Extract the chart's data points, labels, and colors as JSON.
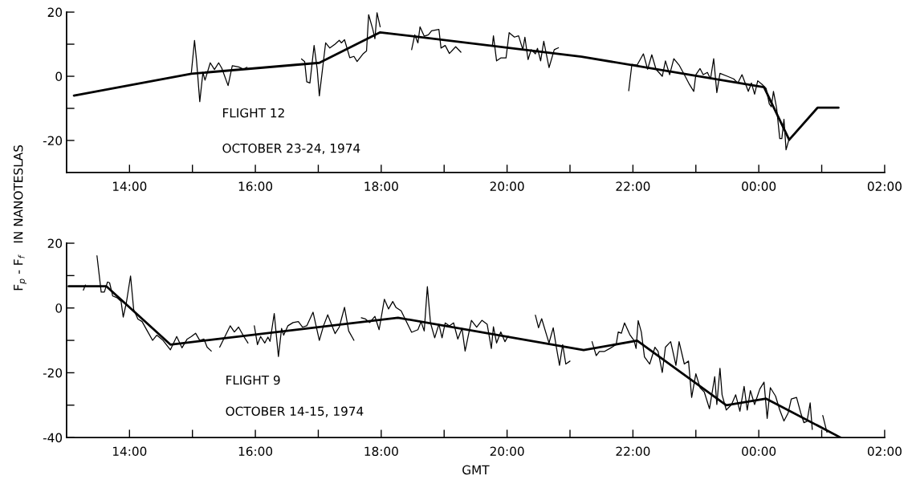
{
  "chart_data": [
    {
      "type": "line",
      "ylabel": "F$_{p}$ - F$_{f}$   IN NANOTESLAS",
      "annotations": [
        "FLIGHT 12",
        "OCTOBER 23-24, 1974"
      ],
      "xlim": [
        "1974-10-23T13:00",
        "1974-10-24T02:00"
      ],
      "ylim": [
        -30,
        20
      ],
      "xticks": [
        {
          "value": "1974-10-23T14:00",
          "label": "14:00"
        },
        {
          "value": "1974-10-23T15:00",
          "label": null
        },
        {
          "value": "1974-10-23T16:00",
          "label": "16:00"
        },
        {
          "value": "1974-10-23T17:00",
          "label": null
        },
        {
          "value": "1974-10-23T18:00",
          "label": "18:00"
        },
        {
          "value": "1974-10-23T19:00",
          "label": null
        },
        {
          "value": "1974-10-23T20:00",
          "label": "20:00"
        },
        {
          "value": "1974-10-23T21:00",
          "label": null
        },
        {
          "value": "1974-10-23T22:00",
          "label": "22:00"
        },
        {
          "value": "1974-10-23T23:00",
          "label": null
        },
        {
          "value": "1974-10-24T00:00",
          "label": "00:00"
        },
        {
          "value": "1974-10-24T01:00",
          "label": null
        },
        {
          "value": "1974-10-24T02:00",
          "label": "02:00"
        }
      ],
      "yticks": [
        20,
        {
          "value": 10,
          "label": null
        },
        0,
        {
          "value": -10,
          "label": null
        },
        -20
      ],
      "series": [
        {
          "color": "#000000",
          "x": [
            "1974-10-23T13:07",
            "1974-10-23T14:59",
            "1974-10-23T17:01",
            "1974-10-23T17:59",
            "1974-10-23T21:11",
            "1974-10-24T00:05",
            "1974-10-24T00:29",
            "1974-10-24T00:56",
            "1974-10-24T01:16"
          ],
          "values": [
            -6,
            0.8,
            4.2,
            13.7,
            6.1,
            -3.4,
            -19.8,
            -9.8,
            -9.8
          ]
        },
        {
          "color": "#000000",
          "x": [
            "1974-10-23T14:59",
            "1974-10-23T15:02",
            "1974-10-23T15:04",
            "1974-10-23T15:07",
            "1974-10-23T15:10",
            "1974-10-23T15:12",
            "1974-10-23T15:17",
            "1974-10-23T15:21",
            "1974-10-23T15:25",
            "1974-10-23T15:28",
            "1974-10-23T15:34",
            "1974-10-23T15:38",
            "1974-10-23T15:44",
            "1974-10-23T15:49",
            "1974-10-23T15:52"
          ],
          "values": [
            1.2,
            11.2,
            4.6,
            -7.9,
            1.2,
            -1.2,
            4.2,
            2.1,
            4.2,
            2.5,
            -2.9,
            3.3,
            2.9,
            2.2,
            2.8
          ]
        },
        {
          "color": "#000000",
          "x": [
            "1974-10-23T16:44",
            "1974-10-23T16:47",
            "1974-10-23T16:49",
            "1974-10-23T16:52",
            "1974-10-23T16:56",
            "1974-10-23T16:59",
            "1974-10-23T17:01",
            "1974-10-23T17:07",
            "1974-10-23T17:11",
            "1974-10-23T17:16",
            "1974-10-23T17:20",
            "1974-10-23T17:22",
            "1974-10-23T17:25",
            "1974-10-23T17:27",
            "1974-10-23T17:30",
            "1974-10-23T17:34",
            "1974-10-23T17:37",
            "1974-10-23T17:43",
            "1974-10-23T17:46",
            "1974-10-23T17:48",
            "1974-10-23T17:52",
            "1974-10-23T17:54",
            "1974-10-23T17:56",
            "1974-10-23T17:59"
          ],
          "values": [
            5.4,
            4.6,
            -1.7,
            -2.1,
            9.6,
            2.1,
            -6.1,
            10.4,
            8.8,
            10,
            11.2,
            10.4,
            11.4,
            9.2,
            5.8,
            6.2,
            4.6,
            7.1,
            7.9,
            19.2,
            14.6,
            11.7,
            19.8,
            15.4
          ]
        },
        {
          "color": "#000000",
          "x": [
            "1974-10-23T18:29",
            "1974-10-23T18:32",
            "1974-10-23T18:35",
            "1974-10-23T18:37",
            "1974-10-23T18:41",
            "1974-10-23T18:45",
            "1974-10-23T18:48",
            "1974-10-23T18:55",
            "1974-10-23T18:57",
            "1974-10-23T19:01",
            "1974-10-23T19:05",
            "1974-10-23T19:11",
            "1974-10-23T19:16"
          ],
          "values": [
            8.3,
            12.9,
            10.4,
            15.4,
            12.5,
            12.9,
            14.2,
            14.6,
            8.8,
            9.6,
            7.1,
            9.2,
            7.5
          ]
        },
        {
          "color": "#000000",
          "x": [
            "1974-10-23T19:46",
            "1974-10-23T19:47",
            "1974-10-23T19:50",
            "1974-10-23T19:54",
            "1974-10-23T19:59",
            "1974-10-23T20:02",
            "1974-10-23T20:07",
            "1974-10-23T20:11",
            "1974-10-23T20:15",
            "1974-10-23T20:17",
            "1974-10-23T20:20",
            "1974-10-23T20:23",
            "1974-10-23T20:27",
            "1974-10-23T20:29",
            "1974-10-23T20:32",
            "1974-10-23T20:35",
            "1974-10-23T20:40",
            "1974-10-23T20:45",
            "1974-10-23T20:49"
          ],
          "values": [
            9.6,
            12.6,
            4.8,
            5.7,
            5.7,
            13.6,
            12.2,
            12.6,
            8.3,
            12.2,
            5.2,
            8.3,
            7,
            8.7,
            4.8,
            10.9,
            2.7,
            8.3,
            8.9
          ]
        },
        {
          "color": "#000000",
          "x": [
            "1974-10-23T21:56",
            "1974-10-23T21:59",
            "1974-10-23T22:04",
            "1974-10-23T22:10",
            "1974-10-23T22:14",
            "1974-10-23T22:18",
            "1974-10-23T22:22",
            "1974-10-23T22:28",
            "1974-10-23T22:31",
            "1974-10-23T22:35",
            "1974-10-23T22:39",
            "1974-10-23T22:44",
            "1974-10-23T22:49",
            "1974-10-23T22:54",
            "1974-10-23T22:58",
            "1974-10-23T23:00",
            "1974-10-23T23:04",
            "1974-10-23T23:07",
            "1974-10-23T23:11",
            "1974-10-23T23:14",
            "1974-10-23T23:17",
            "1974-10-23T23:20",
            "1974-10-23T23:23",
            "1974-10-23T23:30",
            "1974-10-23T23:36",
            "1974-10-23T23:40",
            "1974-10-23T23:44",
            "1974-10-23T23:50",
            "1974-10-23T23:53",
            "1974-10-23T23:56",
            "1974-10-23T23:59",
            "1974-10-24T00:03",
            "1974-10-24T00:07",
            "1974-10-24T00:10",
            "1974-10-24T00:12",
            "1974-10-24T00:14",
            "1974-10-24T00:17",
            "1974-10-24T00:20",
            "1974-10-24T00:22",
            "1974-10-24T00:24",
            "1974-10-24T00:26",
            "1974-10-24T00:29"
          ],
          "values": [
            -4.5,
            3.7,
            3.5,
            7,
            2.2,
            6.7,
            2.2,
            0,
            4.8,
            0.5,
            5.5,
            3.5,
            0.5,
            -2.6,
            -4.7,
            0.5,
            2.4,
            0.5,
            1.2,
            -0.8,
            5.5,
            -5.1,
            0.9,
            0,
            -0.8,
            -2.1,
            0.5,
            -4.7,
            -2.1,
            -5.6,
            -1.4,
            -2.5,
            -3.8,
            -8.6,
            -9.5,
            -4.7,
            -9.9,
            -19.4,
            -19.4,
            -13.4,
            -22.9,
            -19.4
          ]
        }
      ]
    },
    {
      "type": "line",
      "xlabel": "GMT",
      "annotations": [
        "FLIGHT 9",
        "OCTOBER 14-15, 1974"
      ],
      "xlim": [
        "1974-10-14T13:00",
        "1974-10-15T02:00"
      ],
      "ylim": [
        -40,
        20
      ],
      "xticks": [
        {
          "value": "1974-10-14T14:00",
          "label": "14:00"
        },
        {
          "value": "1974-10-14T15:00",
          "label": null
        },
        {
          "value": "1974-10-14T16:00",
          "label": "16:00"
        },
        {
          "value": "1974-10-14T17:00",
          "label": null
        },
        {
          "value": "1974-10-14T18:00",
          "label": "18:00"
        },
        {
          "value": "1974-10-14T19:00",
          "label": null
        },
        {
          "value": "1974-10-14T20:00",
          "label": "20:00"
        },
        {
          "value": "1974-10-14T21:00",
          "label": null
        },
        {
          "value": "1974-10-14T22:00",
          "label": "22:00"
        },
        {
          "value": "1974-10-14T23:00",
          "label": null
        },
        {
          "value": "1974-10-15T00:00",
          "label": "00:00"
        },
        {
          "value": "1974-10-15T01:00",
          "label": null
        },
        {
          "value": "1974-10-15T02:00",
          "label": "02:00"
        }
      ],
      "yticks": [
        20,
        {
          "value": 10,
          "label": null
        },
        0,
        {
          "value": -10,
          "label": null
        },
        -20,
        {
          "value": -30,
          "label": null
        },
        -40
      ],
      "series": [
        {
          "color": "#000000",
          "x": [
            "1974-10-14T13:02",
            "1974-10-14T13:38",
            "1974-10-14T14:39",
            "1974-10-14T18:16",
            "1974-10-14T21:13",
            "1974-10-14T22:04",
            "1974-10-14T23:29",
            "1974-10-15T00:07",
            "1974-10-15T01:18"
          ],
          "values": [
            6.7,
            6.7,
            -11.3,
            -3,
            -13,
            -10.1,
            -30,
            -28,
            -40
          ]
        },
        {
          "color": "#000000",
          "x": [
            "1974-10-14T13:16",
            "1974-10-14T13:18"
          ],
          "values": [
            5.5,
            7.1
          ]
        },
        {
          "color": "#000000",
          "x": [
            "1974-10-14T13:29",
            "1974-10-14T13:33",
            "1974-10-14T13:36",
            "1974-10-14T13:39",
            "1974-10-14T13:41",
            "1974-10-14T13:44",
            "1974-10-14T13:48",
            "1974-10-14T13:52",
            "1974-10-14T13:54",
            "1974-10-14T13:57",
            "1974-10-14T14:01",
            "1974-10-14T14:04",
            "1974-10-14T14:08",
            "1974-10-14T14:12",
            "1974-10-14T14:17",
            "1974-10-14T14:22",
            "1974-10-14T14:26",
            "1974-10-14T14:32",
            "1974-10-14T14:39",
            "1974-10-14T14:45",
            "1974-10-14T14:50",
            "1974-10-14T14:55",
            "1974-10-14T14:59",
            "1974-10-14T15:03",
            "1974-10-14T15:07",
            "1974-10-14T15:11",
            "1974-10-14T15:14",
            "1974-10-14T15:18"
          ],
          "values": [
            16.1,
            4.9,
            4.9,
            8,
            7.8,
            3.7,
            3.2,
            2,
            -2.8,
            1.6,
            9.9,
            -0.5,
            -3.4,
            -4.2,
            -7.1,
            -10,
            -8.4,
            -10,
            -12.9,
            -8.8,
            -12.3,
            -9.6,
            -8.8,
            -7.8,
            -10,
            -9.6,
            -12.1,
            -13.3
          ]
        },
        {
          "color": "#000000",
          "x": [
            "1974-10-14T15:26",
            "1974-10-14T15:31",
            "1974-10-14T15:36",
            "1974-10-14T15:40",
            "1974-10-14T15:44",
            "1974-10-14T15:49",
            "1974-10-14T15:53"
          ],
          "values": [
            -12.1,
            -8.8,
            -5.5,
            -7.4,
            -5.9,
            -8.8,
            -10.8
          ]
        },
        {
          "color": "#000000",
          "x": [
            "1974-10-14T15:59",
            "1974-10-14T16:02",
            "1974-10-14T16:05",
            "1974-10-14T16:09",
            "1974-10-14T16:12",
            "1974-10-14T16:14",
            "1974-10-14T16:18",
            "1974-10-14T16:22",
            "1974-10-14T16:25",
            "1974-10-14T16:27",
            "1974-10-14T16:31",
            "1974-10-14T16:36",
            "1974-10-14T16:41",
            "1974-10-14T16:45",
            "1974-10-14T16:49",
            "1974-10-14T16:55",
            "1974-10-14T17:01",
            "1974-10-14T17:05",
            "1974-10-14T17:09",
            "1974-10-14T17:16",
            "1974-10-14T17:20",
            "1974-10-14T17:25",
            "1974-10-14T17:29",
            "1974-10-14T17:34"
          ],
          "values": [
            -5.5,
            -11.3,
            -8.8,
            -10.8,
            -9,
            -10.3,
            -1.7,
            -15,
            -6.3,
            -8.4,
            -5.5,
            -4.5,
            -4.2,
            -5.9,
            -5.5,
            -1.3,
            -10,
            -5.5,
            -2.1,
            -7.9,
            -5.9,
            0.2,
            -7.1,
            -10
          ]
        },
        {
          "color": "#000000",
          "x": [
            "1974-10-14T17:41",
            "1974-10-14T17:45",
            "1974-10-14T17:49",
            "1974-10-14T17:54",
            "1974-10-14T17:58",
            "1974-10-14T18:03",
            "1974-10-14T18:07",
            "1974-10-14T18:11",
            "1974-10-14T18:14",
            "1974-10-14T18:19",
            "1974-10-14T18:26",
            "1974-10-14T18:29",
            "1974-10-14T18:35",
            "1974-10-14T18:38",
            "1974-10-14T18:41",
            "1974-10-14T18:44",
            "1974-10-14T18:47",
            "1974-10-14T18:51",
            "1974-10-14T18:55",
            "1974-10-14T18:58",
            "1974-10-14T19:01",
            "1974-10-14T19:05",
            "1974-10-14T19:09",
            "1974-10-14T19:13",
            "1974-10-14T19:17",
            "1974-10-14T19:20",
            "1974-10-14T19:26",
            "1974-10-14T19:31",
            "1974-10-14T19:36",
            "1974-10-14T19:41",
            "1974-10-14T19:45",
            "1974-10-14T19:47",
            "1974-10-14T19:50",
            "1974-10-14T19:54",
            "1974-10-14T19:58",
            "1974-10-14T20:01"
          ],
          "values": [
            -3,
            -3.4,
            -4.5,
            -2.6,
            -6.7,
            2.7,
            -0.3,
            2,
            0.2,
            -0.9,
            -5.5,
            -7.5,
            -6.7,
            -4.2,
            -7.1,
            6.6,
            -4.6,
            -9.2,
            -5,
            -9.2,
            -4.6,
            -5.5,
            -4.6,
            -9.6,
            -6.3,
            -13.3,
            -3.8,
            -5.9,
            -3.8,
            -5,
            -12.5,
            -5.8,
            -10.8,
            -7.4,
            -10.4,
            -8.7
          ]
        },
        {
          "color": "#000000",
          "x": [
            "1974-10-14T20:27",
            "1974-10-14T20:30",
            "1974-10-14T20:33",
            "1974-10-14T20:38",
            "1974-10-14T20:40",
            "1974-10-14T20:44",
            "1974-10-14T20:47",
            "1974-10-14T20:50",
            "1974-10-14T20:53",
            "1974-10-14T20:56",
            "1974-10-14T21:00"
          ],
          "values": [
            -2.2,
            -6.1,
            -3.3,
            -8.7,
            -10.8,
            -6.1,
            -12.1,
            -17.7,
            -11.3,
            -17.3,
            -16.4
          ]
        },
        {
          "color": "#000000",
          "x": [
            "1974-10-14T21:21",
            "1974-10-14T21:25",
            "1974-10-14T21:28",
            "1974-10-14T21:33",
            "1974-10-14T21:38",
            "1974-10-14T21:44",
            "1974-10-14T21:46",
            "1974-10-14T21:49",
            "1974-10-14T21:52",
            "1974-10-14T21:57",
            "1974-10-14T22:01",
            "1974-10-14T22:03",
            "1974-10-14T22:05",
            "1974-10-14T22:08",
            "1974-10-14T22:11",
            "1974-10-14T22:16",
            "1974-10-14T22:21",
            "1974-10-14T22:24",
            "1974-10-14T22:28",
            "1974-10-14T22:31",
            "1974-10-14T22:36",
            "1974-10-14T22:41",
            "1974-10-14T22:44",
            "1974-10-14T22:49",
            "1974-10-14T22:53",
            "1974-10-14T22:56",
            "1974-10-14T23:00",
            "1974-10-14T23:04",
            "1974-10-14T23:08",
            "1974-10-14T23:13",
            "1974-10-14T23:18",
            "1974-10-14T23:20",
            "1974-10-14T23:23",
            "1974-10-14T23:25",
            "1974-10-14T23:29",
            "1974-10-14T23:34",
            "1974-10-14T23:38",
            "1974-10-14T23:42",
            "1974-10-14T23:46",
            "1974-10-14T23:49",
            "1974-10-14T23:52",
            "1974-10-14T23:56",
            "1974-10-15T00:01",
            "1974-10-15T00:05",
            "1974-10-15T00:08",
            "1974-10-15T00:11",
            "1974-10-15T00:16",
            "1974-10-15T00:20",
            "1974-10-15T00:24",
            "1974-10-15T00:28",
            "1974-10-15T00:31",
            "1974-10-15T00:36",
            "1974-10-15T00:40",
            "1974-10-15T00:43",
            "1974-10-15T00:46",
            "1974-10-15T00:49",
            "1974-10-15T00:51"
          ],
          "values": [
            -10.4,
            -14.7,
            -13.4,
            -13.4,
            -12.5,
            -11.3,
            -7.4,
            -7.8,
            -4.6,
            -8.2,
            -10,
            -12.5,
            -3.9,
            -7.4,
            -15.1,
            -17.3,
            -12.1,
            -13.4,
            -19.9,
            -12.1,
            -10.4,
            -17.7,
            -10.4,
            -17.3,
            -16.4,
            -27.6,
            -20.3,
            -24.6,
            -25.9,
            -31.1,
            -21.2,
            -29.8,
            -18.6,
            -26.8,
            -31.5,
            -29.8,
            -26.8,
            -31.9,
            -24.2,
            -31.5,
            -25.5,
            -29.8,
            -25,
            -22.9,
            -34.1,
            -24.6,
            -27.2,
            -31.5,
            -34.9,
            -32.4,
            -28.1,
            -27.6,
            -32.4,
            -35.4,
            -35,
            -29.3,
            -37.5
          ]
        },
        {
          "color": "#000000",
          "x": [
            "1974-10-15T01:01",
            "1974-10-15T01:05"
          ],
          "values": [
            -33.2,
            -38.4
          ]
        }
      ]
    }
  ]
}
